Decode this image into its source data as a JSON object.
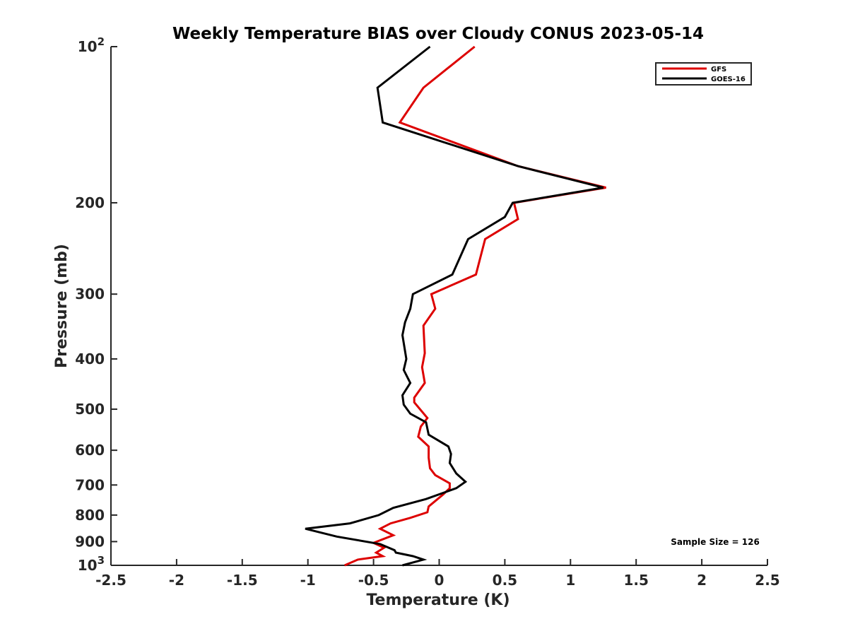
{
  "chart_data": {
    "type": "line",
    "title": "Weekly Temperature BIAS over Cloudy CONUS 2023-05-14",
    "xlabel": "Temperature (K)",
    "ylabel": "Pressure (mb)",
    "xlim": [
      -2.5,
      2.5
    ],
    "ylim": [
      100,
      1000
    ],
    "y_scale": "log",
    "y_reversed": true,
    "grid": false,
    "x_ticks": [
      "-2.5",
      "-2",
      "-1.5",
      "-1",
      "-0.5",
      "0",
      "0.5",
      "1",
      "1.5",
      "2",
      "2.5"
    ],
    "x_tick_values": [
      -2.5,
      -2,
      -1.5,
      -1,
      -0.5,
      0,
      0.5,
      1,
      1.5,
      2,
      2.5
    ],
    "y_ticks": [
      {
        "value": 100,
        "base": "10",
        "exp": "2"
      },
      {
        "value": 200,
        "label": "200"
      },
      {
        "value": 300,
        "label": "300"
      },
      {
        "value": 400,
        "label": "400"
      },
      {
        "value": 500,
        "label": "500"
      },
      {
        "value": 600,
        "label": "600"
      },
      {
        "value": 700,
        "label": "700"
      },
      {
        "value": 800,
        "label": "800"
      },
      {
        "value": 900,
        "label": "900"
      },
      {
        "value": 1000,
        "base": "10",
        "exp": "3"
      }
    ],
    "legend_position": "top-right",
    "annotation": "Sample Size = 126",
    "series": [
      {
        "name": "GFS",
        "color": "#dd0000",
        "points": [
          [
            0.27,
            100
          ],
          [
            -0.12,
            120
          ],
          [
            -0.3,
            140
          ],
          [
            0.6,
            170
          ],
          [
            1.27,
            187
          ],
          [
            0.57,
            200
          ],
          [
            0.6,
            215
          ],
          [
            0.35,
            235
          ],
          [
            0.28,
            275
          ],
          [
            -0.06,
            300
          ],
          [
            -0.03,
            320
          ],
          [
            -0.12,
            345
          ],
          [
            -0.11,
            390
          ],
          [
            -0.13,
            415
          ],
          [
            -0.11,
            445
          ],
          [
            -0.19,
            475
          ],
          [
            -0.19,
            485
          ],
          [
            -0.09,
            520
          ],
          [
            -0.14,
            540
          ],
          [
            -0.16,
            565
          ],
          [
            -0.08,
            590
          ],
          [
            -0.08,
            620
          ],
          [
            -0.07,
            650
          ],
          [
            -0.03,
            670
          ],
          [
            0.08,
            695
          ],
          [
            0.08,
            710
          ],
          [
            0.03,
            730
          ],
          [
            -0.08,
            770
          ],
          [
            -0.09,
            790
          ],
          [
            -0.22,
            810
          ],
          [
            -0.37,
            830
          ],
          [
            -0.45,
            850
          ],
          [
            -0.35,
            875
          ],
          [
            -0.5,
            905
          ],
          [
            -0.42,
            925
          ],
          [
            -0.48,
            945
          ],
          [
            -0.43,
            960
          ],
          [
            -0.62,
            975
          ],
          [
            -0.72,
            1000
          ]
        ]
      },
      {
        "name": "GOES-16",
        "color": "#000000",
        "points": [
          [
            -0.07,
            100
          ],
          [
            -0.47,
            120
          ],
          [
            -0.43,
            140
          ],
          [
            0.6,
            170
          ],
          [
            1.25,
            187
          ],
          [
            0.56,
            200
          ],
          [
            0.5,
            213
          ],
          [
            0.22,
            235
          ],
          [
            0.1,
            275
          ],
          [
            -0.2,
            300
          ],
          [
            -0.22,
            320
          ],
          [
            -0.26,
            340
          ],
          [
            -0.28,
            360
          ],
          [
            -0.25,
            400
          ],
          [
            -0.27,
            420
          ],
          [
            -0.22,
            445
          ],
          [
            -0.28,
            470
          ],
          [
            -0.27,
            490
          ],
          [
            -0.22,
            510
          ],
          [
            -0.1,
            530
          ],
          [
            -0.08,
            560
          ],
          [
            0.07,
            590
          ],
          [
            0.09,
            610
          ],
          [
            0.08,
            635
          ],
          [
            0.13,
            665
          ],
          [
            0.2,
            690
          ],
          [
            0.13,
            710
          ],
          [
            -0.1,
            745
          ],
          [
            -0.35,
            775
          ],
          [
            -0.46,
            800
          ],
          [
            -0.68,
            830
          ],
          [
            -1.02,
            850
          ],
          [
            -0.78,
            880
          ],
          [
            -0.45,
            910
          ],
          [
            -0.34,
            935
          ],
          [
            -0.33,
            945
          ],
          [
            -0.2,
            960
          ],
          [
            -0.12,
            975
          ],
          [
            -0.28,
            1000
          ]
        ]
      }
    ]
  }
}
